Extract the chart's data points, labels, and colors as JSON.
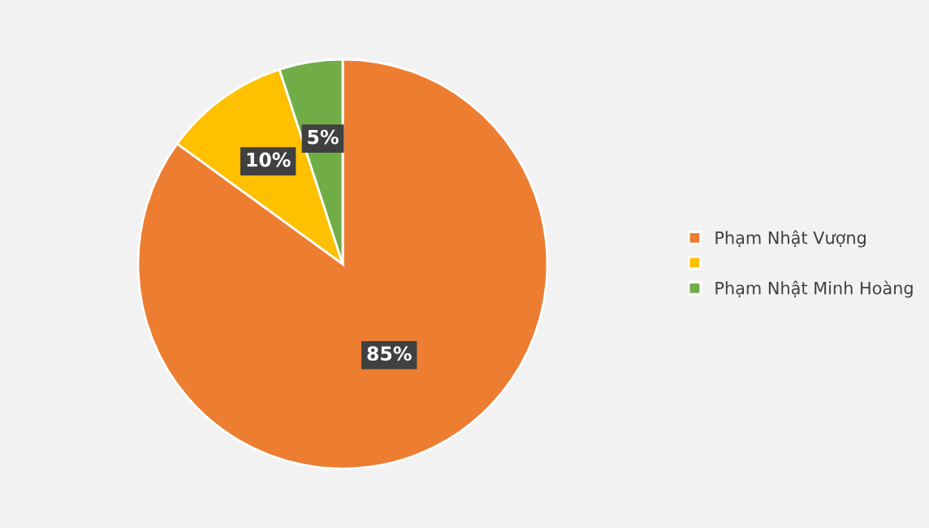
{
  "chart_data": {
    "type": "pie",
    "categories": [
      "Phạm Nhật Vượng",
      null,
      "Phạm Nhật Minh Hoàng"
    ],
    "values": [
      85,
      10,
      5
    ],
    "colors": [
      "#ed7d31",
      "#ffc000",
      "#70ad47"
    ],
    "value_labels": [
      "85%",
      "10%",
      "5%"
    ],
    "legend": "right"
  }
}
